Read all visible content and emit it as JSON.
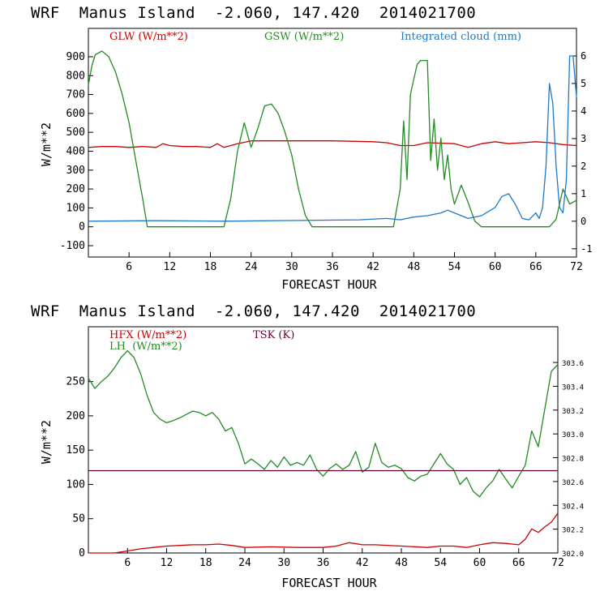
{
  "chart_data": [
    {
      "type": "line",
      "title": "WRF  Manus Island  -2.060, 147.420  2014021700",
      "xlabel": "FORECAST HOUR",
      "ylabel": "W/m**2",
      "x_ticks": [
        "6",
        "12",
        "18",
        "24",
        "30",
        "36",
        "42",
        "48",
        "54",
        "60",
        "66",
        "72"
      ],
      "xlim": [
        0,
        72
      ],
      "ylim": [
        -160,
        1050
      ],
      "y_ticks": [
        "900",
        "800",
        "700",
        "600",
        "500",
        "400",
        "300",
        "200",
        "100",
        "0",
        "-100"
      ],
      "y2lim": [
        -1.3,
        7.0
      ],
      "y2_ticks": [
        "6",
        "5",
        "4",
        "3",
        "2",
        "1",
        "0",
        "-1"
      ],
      "grid": false,
      "legend_placement": "top",
      "series": [
        {
          "name": "GLW (W/m**2)",
          "color": "#cc0000",
          "axis": "left",
          "x": [
            0,
            2,
            4,
            6,
            8,
            10,
            11,
            12,
            14,
            16,
            18,
            19,
            20,
            21,
            22,
            24,
            30,
            36,
            42,
            44,
            46,
            48,
            50,
            54,
            56,
            58,
            60,
            62,
            64,
            66,
            68,
            70,
            72
          ],
          "y": [
            420,
            425,
            425,
            420,
            425,
            420,
            440,
            430,
            425,
            425,
            420,
            440,
            420,
            430,
            440,
            455,
            455,
            455,
            450,
            445,
            430,
            430,
            445,
            440,
            420,
            440,
            450,
            440,
            445,
            450,
            445,
            435,
            430
          ]
        },
        {
          "name": "GSW (W/m**2)",
          "color": "#228b22",
          "axis": "left",
          "x": [
            0,
            0.5,
            1,
            2,
            3,
            4,
            5,
            6,
            7,
            8,
            8.7,
            10,
            14,
            18,
            20,
            21,
            22,
            23,
            24,
            25,
            26,
            27,
            28,
            29,
            30,
            31,
            32,
            33,
            36,
            42,
            45,
            46,
            46.5,
            47,
            47.5,
            48,
            48.5,
            49,
            50,
            50.5,
            51,
            51.5,
            52,
            52.5,
            53,
            53.5,
            54,
            55,
            56,
            57,
            58,
            60,
            66,
            68,
            69,
            70,
            71,
            72
          ],
          "y": [
            750,
            850,
            910,
            930,
            900,
            820,
            700,
            550,
            350,
            150,
            0,
            0,
            0,
            0,
            0,
            150,
            400,
            550,
            420,
            520,
            640,
            650,
            600,
            500,
            380,
            200,
            60,
            0,
            0,
            0,
            0,
            200,
            560,
            250,
            700,
            780,
            860,
            880,
            880,
            350,
            570,
            300,
            470,
            250,
            380,
            200,
            120,
            220,
            130,
            30,
            0,
            0,
            0,
            0,
            40,
            200,
            120,
            140
          ]
        },
        {
          "name": "Integrated cloud (mm)",
          "color": "#1e78c8",
          "axis": "right",
          "x": [
            0,
            10,
            20,
            40,
            44,
            46,
            48,
            50,
            52,
            53,
            54,
            55,
            56,
            58,
            60,
            61,
            62,
            63,
            64,
            65,
            66,
            66.5,
            67,
            67.5,
            68,
            68.5,
            69,
            69.5,
            70,
            70.5,
            71,
            71.5,
            72
          ],
          "y": [
            0,
            0.02,
            0,
            0.05,
            0.1,
            0.05,
            0.15,
            0.2,
            0.3,
            0.4,
            0.3,
            0.2,
            0.1,
            0.2,
            0.5,
            0.9,
            1.0,
            0.6,
            0.1,
            0.05,
            0.3,
            0.1,
            0.5,
            2.0,
            5.0,
            4.3,
            2.0,
            0.5,
            0.3,
            1.5,
            6.0,
            6.0,
            4.5
          ]
        }
      ]
    },
    {
      "type": "line",
      "title": "WRF  Manus Island  -2.060, 147.420  2014021700",
      "xlabel": "FORECAST HOUR",
      "ylabel": "W/m**2",
      "x_ticks": [
        "6",
        "12",
        "18",
        "24",
        "30",
        "36",
        "42",
        "48",
        "54",
        "60",
        "66",
        "72"
      ],
      "xlim": [
        0,
        72
      ],
      "ylim": [
        0,
        330
      ],
      "y_ticks": [
        "250",
        "200",
        "150",
        "100",
        "50",
        "0"
      ],
      "y2lim": [
        302.0,
        303.9
      ],
      "y2_ticks": [
        "303.6",
        "303.4",
        "303.2",
        "303.0",
        "302.8",
        "302.6",
        "302.4",
        "302.2",
        "302.0"
      ],
      "grid": false,
      "legend_placement": "top-left",
      "series": [
        {
          "name": "HFX (W/m**2)",
          "color": "#cc0000",
          "axis": "left",
          "x": [
            0,
            4,
            6,
            8,
            10,
            12,
            14,
            16,
            18,
            20,
            22,
            24,
            28,
            32,
            36,
            38,
            40,
            42,
            44,
            48,
            52,
            54,
            56,
            58,
            60,
            62,
            64,
            66,
            67,
            68,
            69,
            70,
            71,
            72
          ],
          "y": [
            0,
            0,
            3,
            6,
            8,
            10,
            11,
            12,
            12,
            13,
            11,
            8,
            9,
            8,
            8,
            10,
            15,
            12,
            12,
            10,
            8,
            10,
            10,
            8,
            12,
            15,
            14,
            12,
            20,
            35,
            30,
            38,
            45,
            58
          ]
        },
        {
          "name": "LH  (W/m**2)",
          "color": "#228b22",
          "axis": "left",
          "x": [
            0,
            1,
            2,
            3,
            4,
            5,
            6,
            7,
            8,
            9,
            10,
            11,
            12,
            13,
            14,
            15,
            16,
            17,
            18,
            19,
            20,
            21,
            22,
            23,
            24,
            25,
            26,
            27,
            28,
            29,
            30,
            31,
            32,
            33,
            34,
            35,
            36,
            37,
            38,
            39,
            40,
            41,
            42,
            43,
            44,
            45,
            46,
            47,
            48,
            49,
            50,
            51,
            52,
            53,
            54,
            55,
            56,
            57,
            58,
            59,
            60,
            61,
            62,
            63,
            64,
            65,
            66,
            67,
            68,
            69,
            70,
            71,
            72
          ],
          "y": [
            255,
            240,
            250,
            258,
            270,
            285,
            295,
            285,
            262,
            230,
            205,
            195,
            190,
            193,
            197,
            202,
            207,
            205,
            200,
            205,
            195,
            178,
            183,
            160,
            130,
            137,
            130,
            122,
            135,
            125,
            140,
            128,
            132,
            128,
            143,
            122,
            112,
            123,
            130,
            122,
            128,
            148,
            118,
            125,
            160,
            132,
            125,
            128,
            123,
            110,
            105,
            112,
            115,
            130,
            145,
            130,
            122,
            100,
            110,
            90,
            82,
            95,
            105,
            122,
            108,
            95,
            112,
            128,
            178,
            155,
            210,
            265,
            275
          ]
        },
        {
          "name": "TSK (K)",
          "color": "#660033",
          "axis": "left",
          "x": [
            0,
            72
          ],
          "y": [
            120,
            120
          ]
        }
      ]
    }
  ]
}
